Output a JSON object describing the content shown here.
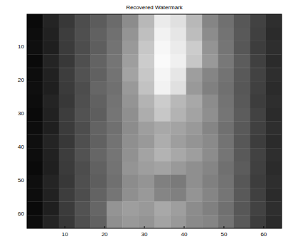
{
  "chart_data": {
    "type": "heatmap",
    "title": "Recovered Watermark",
    "color": "gray",
    "xlim": [
      0.5,
      64.5
    ],
    "ylim": [
      0.5,
      64.5
    ],
    "xticks": [
      10,
      20,
      30,
      40,
      50,
      60
    ],
    "yticks": [
      10,
      20,
      30,
      40,
      50,
      60
    ],
    "color_range": [
      0,
      1
    ],
    "cells": [
      [
        0.04,
        0.14,
        0.22,
        0.3,
        0.36,
        0.42,
        0.55,
        0.72,
        0.92,
        0.88,
        0.72,
        0.52,
        0.44,
        0.34,
        0.26,
        0.18
      ],
      [
        0.05,
        0.13,
        0.24,
        0.31,
        0.38,
        0.44,
        0.58,
        0.75,
        0.95,
        0.9,
        0.74,
        0.55,
        0.45,
        0.35,
        0.25,
        0.17
      ],
      [
        0.06,
        0.12,
        0.23,
        0.3,
        0.37,
        0.45,
        0.6,
        0.78,
        0.97,
        0.92,
        0.8,
        0.58,
        0.46,
        0.34,
        0.24,
        0.18
      ],
      [
        0.04,
        0.14,
        0.22,
        0.31,
        0.39,
        0.46,
        0.62,
        0.8,
        0.98,
        0.94,
        0.78,
        0.6,
        0.47,
        0.36,
        0.25,
        0.17
      ],
      [
        0.05,
        0.13,
        0.24,
        0.32,
        0.38,
        0.45,
        0.64,
        0.78,
        0.96,
        0.9,
        0.62,
        0.52,
        0.45,
        0.35,
        0.26,
        0.18
      ],
      [
        0.06,
        0.12,
        0.23,
        0.3,
        0.4,
        0.44,
        0.6,
        0.76,
        0.95,
        0.88,
        0.6,
        0.5,
        0.44,
        0.34,
        0.25,
        0.17
      ],
      [
        0.05,
        0.14,
        0.22,
        0.31,
        0.38,
        0.45,
        0.58,
        0.7,
        0.8,
        0.72,
        0.66,
        0.55,
        0.45,
        0.35,
        0.24,
        0.18
      ],
      [
        0.04,
        0.13,
        0.24,
        0.32,
        0.37,
        0.46,
        0.56,
        0.68,
        0.78,
        0.7,
        0.64,
        0.56,
        0.46,
        0.36,
        0.26,
        0.17
      ],
      [
        0.05,
        0.12,
        0.23,
        0.3,
        0.39,
        0.44,
        0.55,
        0.62,
        0.66,
        0.64,
        0.6,
        0.52,
        0.44,
        0.35,
        0.25,
        0.18
      ],
      [
        0.06,
        0.14,
        0.22,
        0.31,
        0.38,
        0.45,
        0.56,
        0.6,
        0.68,
        0.62,
        0.58,
        0.54,
        0.45,
        0.34,
        0.24,
        0.17
      ],
      [
        0.05,
        0.13,
        0.24,
        0.32,
        0.4,
        0.46,
        0.57,
        0.64,
        0.7,
        0.66,
        0.62,
        0.55,
        0.46,
        0.35,
        0.26,
        0.18
      ],
      [
        0.04,
        0.12,
        0.23,
        0.3,
        0.38,
        0.45,
        0.58,
        0.62,
        0.64,
        0.6,
        0.56,
        0.52,
        0.44,
        0.36,
        0.25,
        0.17
      ],
      [
        0.06,
        0.14,
        0.22,
        0.31,
        0.37,
        0.44,
        0.55,
        0.58,
        0.5,
        0.48,
        0.56,
        0.5,
        0.45,
        0.34,
        0.24,
        0.18
      ],
      [
        0.05,
        0.13,
        0.24,
        0.3,
        0.39,
        0.46,
        0.56,
        0.6,
        0.52,
        0.5,
        0.58,
        0.52,
        0.46,
        0.35,
        0.25,
        0.17
      ],
      [
        0.04,
        0.12,
        0.23,
        0.32,
        0.4,
        0.58,
        0.62,
        0.6,
        0.66,
        0.62,
        0.55,
        0.5,
        0.44,
        0.34,
        0.26,
        0.18
      ],
      [
        0.05,
        0.14,
        0.22,
        0.31,
        0.38,
        0.56,
        0.6,
        0.58,
        0.64,
        0.6,
        0.54,
        0.52,
        0.45,
        0.35,
        0.24,
        0.17
      ]
    ]
  }
}
